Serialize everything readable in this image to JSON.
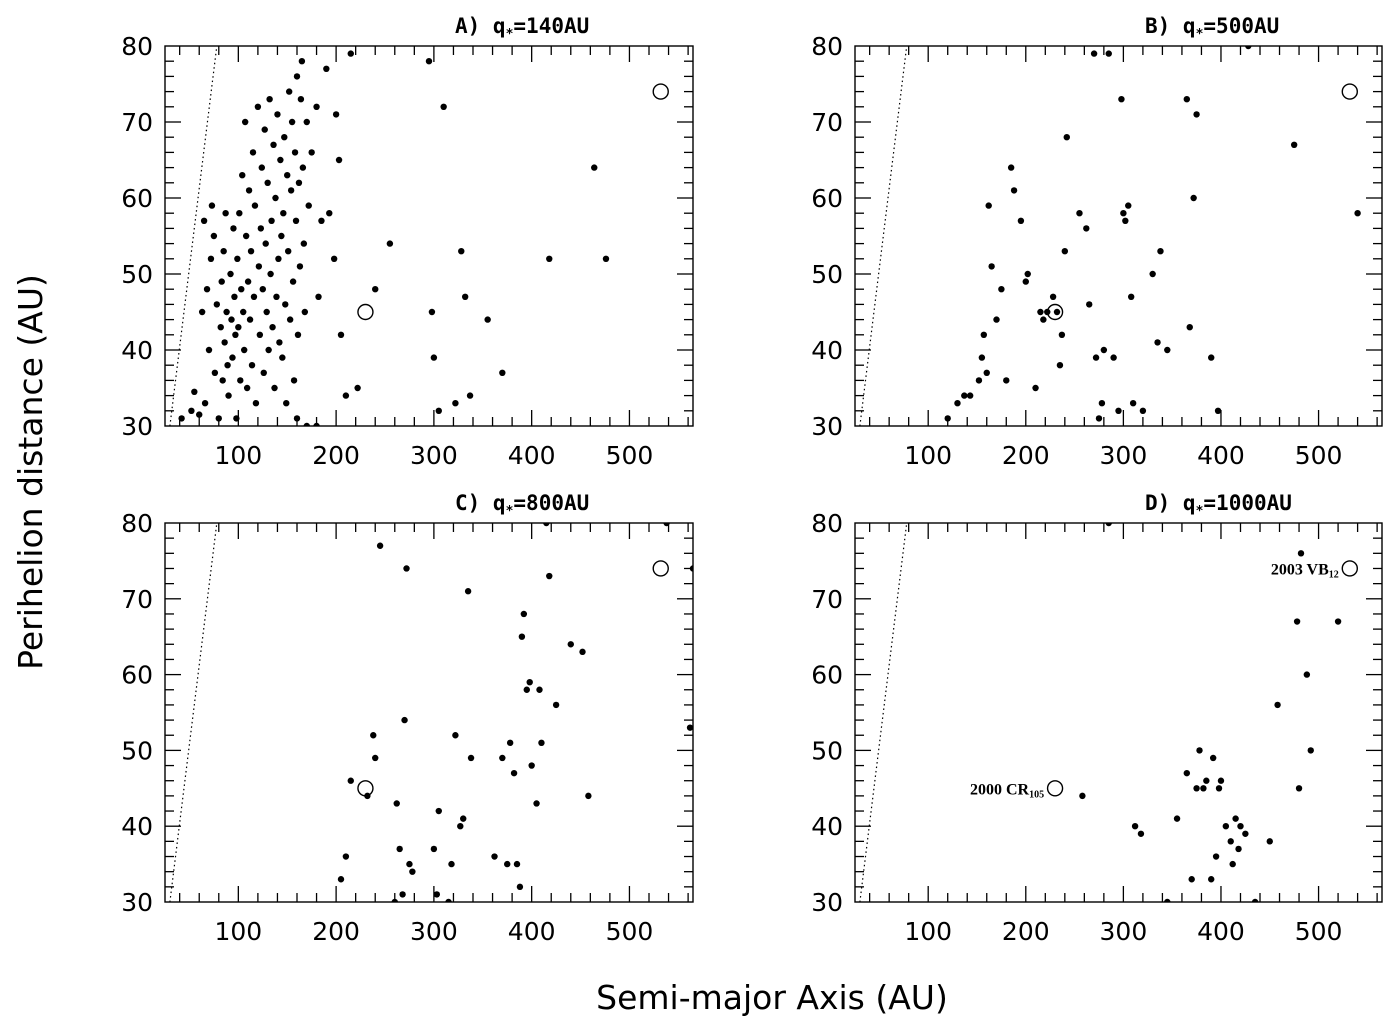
{
  "figure": {
    "xlabel": "Semi-major Axis (AU)",
    "ylabel": "Perihelion distance (AU)"
  },
  "chart_data": [
    {
      "type": "scatter",
      "panel": "A",
      "title": "A)  q",
      "title_star": "*",
      "title_rest": "=140AU",
      "xlim": [
        25,
        565
      ],
      "ylim": [
        30,
        80
      ],
      "xticks": [
        100,
        200,
        300,
        400,
        500
      ],
      "yticks": [
        30,
        40,
        50,
        60,
        70,
        80
      ],
      "grid": false,
      "boundary_line": {
        "style": "dotted",
        "points": [
          [
            30,
            30
          ],
          [
            78,
            80
          ]
        ]
      },
      "open_circles": [
        [
          230,
          45
        ],
        [
          532,
          74
        ]
      ],
      "points": [
        [
          42,
          31
        ],
        [
          52,
          32
        ],
        [
          55,
          34.5
        ],
        [
          60,
          31.5
        ],
        [
          63,
          45
        ],
        [
          65,
          57
        ],
        [
          66,
          33
        ],
        [
          68,
          48
        ],
        [
          70,
          40
        ],
        [
          72,
          52
        ],
        [
          73,
          59
        ],
        [
          75,
          55
        ],
        [
          76,
          37
        ],
        [
          78,
          46
        ],
        [
          80,
          31
        ],
        [
          82,
          43
        ],
        [
          83,
          49
        ],
        [
          84,
          36
        ],
        [
          85,
          53
        ],
        [
          86,
          41
        ],
        [
          87,
          58
        ],
        [
          88,
          45
        ],
        [
          89,
          38
        ],
        [
          90,
          34
        ],
        [
          92,
          50
        ],
        [
          93,
          44
        ],
        [
          94,
          39
        ],
        [
          95,
          56
        ],
        [
          96,
          47
        ],
        [
          97,
          42
        ],
        [
          98,
          31
        ],
        [
          99,
          52
        ],
        [
          100,
          43
        ],
        [
          101,
          58
        ],
        [
          102,
          36
        ],
        [
          103,
          48
        ],
        [
          104,
          63
        ],
        [
          105,
          45
        ],
        [
          106,
          40
        ],
        [
          107,
          70
        ],
        [
          108,
          55
        ],
        [
          109,
          35
        ],
        [
          110,
          49
        ],
        [
          111,
          61
        ],
        [
          112,
          44
        ],
        [
          113,
          53
        ],
        [
          114,
          38
        ],
        [
          115,
          66
        ],
        [
          116,
          47
        ],
        [
          117,
          59
        ],
        [
          118,
          33
        ],
        [
          120,
          72
        ],
        [
          121,
          51
        ],
        [
          122,
          42
        ],
        [
          123,
          56
        ],
        [
          124,
          64
        ],
        [
          125,
          48
        ],
        [
          126,
          37
        ],
        [
          127,
          69
        ],
        [
          128,
          54
        ],
        [
          129,
          45
        ],
        [
          130,
          62
        ],
        [
          131,
          40
        ],
        [
          132,
          73
        ],
        [
          133,
          50
        ],
        [
          134,
          57
        ],
        [
          135,
          43
        ],
        [
          136,
          67
        ],
        [
          137,
          35
        ],
        [
          138,
          60
        ],
        [
          139,
          47
        ],
        [
          140,
          71
        ],
        [
          141,
          52
        ],
        [
          142,
          41
        ],
        [
          143,
          65
        ],
        [
          144,
          55
        ],
        [
          145,
          39
        ],
        [
          146,
          58
        ],
        [
          147,
          68
        ],
        [
          148,
          46
        ],
        [
          149,
          33
        ],
        [
          150,
          63
        ],
        [
          151,
          53
        ],
        [
          152,
          74
        ],
        [
          153,
          44
        ],
        [
          154,
          61
        ],
        [
          155,
          70
        ],
        [
          156,
          49
        ],
        [
          157,
          36
        ],
        [
          158,
          66
        ],
        [
          159,
          57
        ],
        [
          160,
          76
        ],
        [
          161,
          42
        ],
        [
          162,
          62
        ],
        [
          163,
          51
        ],
        [
          164,
          73
        ],
        [
          165,
          78
        ],
        [
          166,
          64
        ],
        [
          167,
          54
        ],
        [
          168,
          45
        ],
        [
          170,
          70
        ],
        [
          172,
          59
        ],
        [
          175,
          66
        ],
        [
          180,
          72
        ],
        [
          182,
          47
        ],
        [
          185,
          57
        ],
        [
          190,
          77
        ],
        [
          193,
          58
        ],
        [
          198,
          52
        ],
        [
          200,
          71
        ],
        [
          203,
          65
        ],
        [
          205,
          42
        ],
        [
          210,
          34
        ],
        [
          215,
          79
        ],
        [
          222,
          35
        ],
        [
          240,
          48
        ],
        [
          255,
          54
        ],
        [
          295,
          78
        ],
        [
          298,
          45
        ],
        [
          300,
          39
        ],
        [
          305,
          32
        ],
        [
          310,
          72
        ],
        [
          322,
          33
        ],
        [
          328,
          53
        ],
        [
          332,
          47
        ],
        [
          337,
          34
        ],
        [
          355,
          44
        ],
        [
          370,
          37
        ],
        [
          418,
          52
        ],
        [
          464,
          64
        ],
        [
          476,
          52
        ],
        [
          160,
          31
        ],
        [
          170,
          30
        ],
        [
          180,
          30
        ]
      ]
    },
    {
      "type": "scatter",
      "panel": "B",
      "title": "B)  q",
      "title_star": "*",
      "title_rest": "=500AU",
      "xlim": [
        25,
        565
      ],
      "ylim": [
        30,
        80
      ],
      "xticks": [
        100,
        200,
        300,
        400,
        500
      ],
      "yticks": [
        30,
        40,
        50,
        60,
        70,
        80
      ],
      "grid": false,
      "boundary_line": {
        "style": "dotted",
        "points": [
          [
            30,
            30
          ],
          [
            78,
            80
          ]
        ]
      },
      "open_circles": [
        [
          230,
          45
        ],
        [
          532,
          74
        ]
      ],
      "points": [
        [
          120,
          31
        ],
        [
          130,
          33
        ],
        [
          137,
          34
        ],
        [
          143,
          34
        ],
        [
          152,
          36
        ],
        [
          155,
          39
        ],
        [
          157,
          42
        ],
        [
          160,
          37
        ],
        [
          162,
          59
        ],
        [
          165,
          51
        ],
        [
          170,
          44
        ],
        [
          175,
          48
        ],
        [
          180,
          36
        ],
        [
          185,
          64
        ],
        [
          188,
          61
        ],
        [
          195,
          57
        ],
        [
          200,
          49
        ],
        [
          202,
          50
        ],
        [
          210,
          35
        ],
        [
          215,
          45
        ],
        [
          218,
          44
        ],
        [
          222,
          45
        ],
        [
          228,
          47
        ],
        [
          232,
          45
        ],
        [
          235,
          38
        ],
        [
          237,
          42
        ],
        [
          240,
          53
        ],
        [
          242,
          68
        ],
        [
          255,
          58
        ],
        [
          262,
          56
        ],
        [
          265,
          46
        ],
        [
          270,
          79
        ],
        [
          272,
          39
        ],
        [
          275,
          31
        ],
        [
          278,
          33
        ],
        [
          280,
          40
        ],
        [
          285,
          79
        ],
        [
          290,
          39
        ],
        [
          295,
          32
        ],
        [
          298,
          73
        ],
        [
          300,
          58
        ],
        [
          302,
          57
        ],
        [
          305,
          59
        ],
        [
          308,
          47
        ],
        [
          310,
          33
        ],
        [
          320,
          32
        ],
        [
          330,
          50
        ],
        [
          335,
          41
        ],
        [
          338,
          53
        ],
        [
          345,
          40
        ],
        [
          365,
          73
        ],
        [
          368,
          43
        ],
        [
          372,
          60
        ],
        [
          375,
          71
        ],
        [
          390,
          39
        ],
        [
          397,
          32
        ],
        [
          428,
          80
        ],
        [
          475,
          67
        ],
        [
          540,
          58
        ]
      ]
    },
    {
      "type": "scatter",
      "panel": "C",
      "title": "C)  q",
      "title_star": "*",
      "title_rest": "=800AU",
      "xlim": [
        25,
        565
      ],
      "ylim": [
        30,
        80
      ],
      "xticks": [
        100,
        200,
        300,
        400,
        500
      ],
      "yticks": [
        30,
        40,
        50,
        60,
        70,
        80
      ],
      "grid": false,
      "boundary_line": {
        "style": "dotted",
        "points": [
          [
            30,
            30
          ],
          [
            78,
            80
          ]
        ]
      },
      "open_circles": [
        [
          230,
          45
        ],
        [
          532,
          74
        ]
      ],
      "points": [
        [
          205,
          33
        ],
        [
          210,
          36
        ],
        [
          215,
          46
        ],
        [
          232,
          44
        ],
        [
          238,
          52
        ],
        [
          240,
          49
        ],
        [
          245,
          77
        ],
        [
          260,
          30
        ],
        [
          262,
          43
        ],
        [
          265,
          37
        ],
        [
          268,
          31
        ],
        [
          270,
          54
        ],
        [
          272,
          74
        ],
        [
          275,
          35
        ],
        [
          278,
          34
        ],
        [
          300,
          37
        ],
        [
          303,
          31
        ],
        [
          305,
          42
        ],
        [
          315,
          30
        ],
        [
          318,
          35
        ],
        [
          322,
          52
        ],
        [
          327,
          40
        ],
        [
          330,
          41
        ],
        [
          335,
          71
        ],
        [
          338,
          49
        ],
        [
          362,
          36
        ],
        [
          370,
          49
        ],
        [
          375,
          35
        ],
        [
          378,
          51
        ],
        [
          382,
          47
        ],
        [
          385,
          35
        ],
        [
          388,
          32
        ],
        [
          390,
          65
        ],
        [
          392,
          68
        ],
        [
          395,
          58
        ],
        [
          398,
          59
        ],
        [
          400,
          48
        ],
        [
          405,
          43
        ],
        [
          408,
          58
        ],
        [
          410,
          51
        ],
        [
          415,
          80
        ],
        [
          418,
          73
        ],
        [
          425,
          56
        ],
        [
          440,
          64
        ],
        [
          452,
          63
        ],
        [
          458,
          44
        ],
        [
          538,
          80
        ],
        [
          562,
          53
        ],
        [
          565,
          74
        ]
      ]
    },
    {
      "type": "scatter",
      "panel": "D",
      "title": "D)  q",
      "title_star": "*",
      "title_rest": "=1000AU",
      "xlim": [
        25,
        565
      ],
      "ylim": [
        30,
        80
      ],
      "xticks": [
        100,
        200,
        300,
        400,
        500
      ],
      "yticks": [
        30,
        40,
        50,
        60,
        70,
        80
      ],
      "grid": false,
      "boundary_line": {
        "style": "dotted",
        "points": [
          [
            30,
            30
          ],
          [
            78,
            80
          ]
        ]
      },
      "open_circles": [
        [
          230,
          45
        ],
        [
          532,
          74
        ]
      ],
      "annotations": [
        {
          "text": "2000  CR",
          "sub": "105",
          "x": 230,
          "y": 45,
          "side": "left"
        },
        {
          "text": "2003  VB",
          "sub": "12",
          "x": 532,
          "y": 74,
          "side": "left"
        }
      ],
      "points": [
        [
          258,
          44
        ],
        [
          285,
          80
        ],
        [
          312,
          40
        ],
        [
          318,
          39
        ],
        [
          345,
          30
        ],
        [
          355,
          41
        ],
        [
          365,
          47
        ],
        [
          370,
          33
        ],
        [
          375,
          45
        ],
        [
          378,
          50
        ],
        [
          382,
          45
        ],
        [
          385,
          46
        ],
        [
          390,
          33
        ],
        [
          392,
          49
        ],
        [
          395,
          36
        ],
        [
          398,
          45
        ],
        [
          400,
          46
        ],
        [
          405,
          40
        ],
        [
          410,
          38
        ],
        [
          412,
          35
        ],
        [
          415,
          41
        ],
        [
          418,
          37
        ],
        [
          420,
          40
        ],
        [
          425,
          39
        ],
        [
          435,
          30
        ],
        [
          450,
          38
        ],
        [
          458,
          56
        ],
        [
          478,
          67
        ],
        [
          480,
          45
        ],
        [
          482,
          76
        ],
        [
          488,
          60
        ],
        [
          492,
          50
        ],
        [
          520,
          67
        ]
      ]
    }
  ]
}
